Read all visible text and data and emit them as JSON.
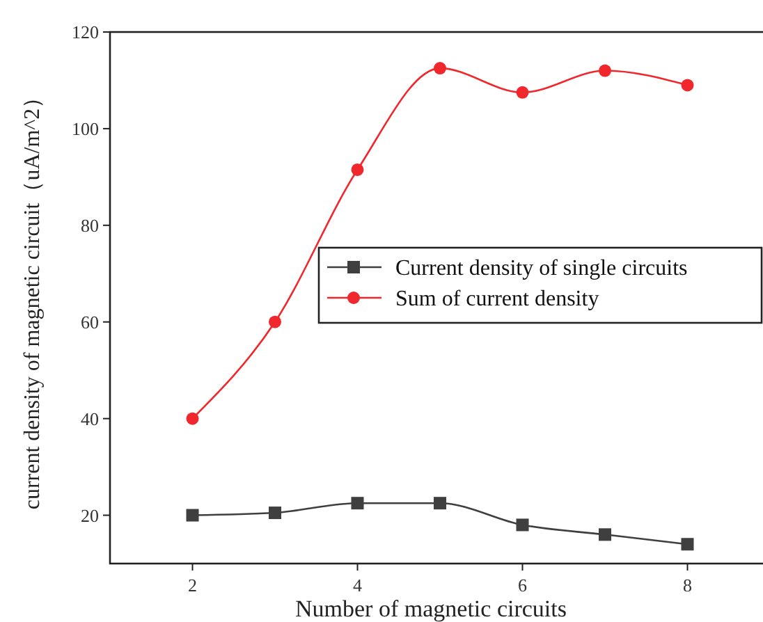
{
  "chart_data": {
    "type": "line",
    "xlabel": "Number of magnetic circuits",
    "ylabel": "current density of magnetic circuit（uA/m^2）",
    "x": [
      2,
      3,
      4,
      5,
      6,
      7,
      8
    ],
    "series": [
      {
        "name": "Current density of single circuits",
        "color": "#3f3f3f",
        "marker": "square",
        "values": [
          20,
          20.5,
          22.5,
          22.5,
          18,
          16,
          14
        ]
      },
      {
        "name": "Sum of current density",
        "color": "#f0282d",
        "marker": "circle",
        "values": [
          40,
          60,
          91.5,
          112.5,
          107.5,
          112,
          109
        ]
      }
    ],
    "xlim": [
      1,
      9
    ],
    "xticks": [
      2,
      4,
      6,
      8
    ],
    "ylim": [
      10,
      120
    ],
    "yticks": [
      20,
      40,
      60,
      80,
      100,
      120
    ],
    "grid": false,
    "legend": "right",
    "line_style": "solid"
  }
}
